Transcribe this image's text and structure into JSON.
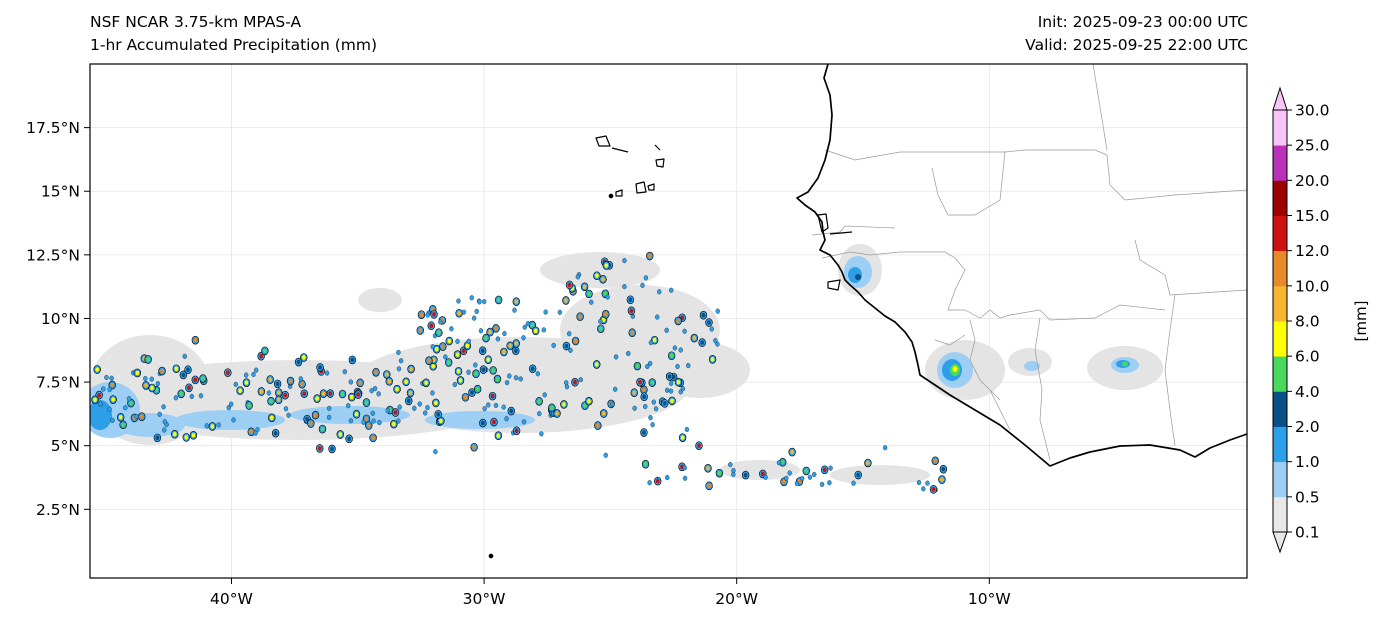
{
  "header": {
    "model": "NSF NCAR 3.75-km MPAS-A",
    "field": "1-hr Accumulated Precipitation (mm)",
    "init": "Init: 2025-09-23 00:00 UTC",
    "valid": "Valid: 2025-09-25 22:00 UTC"
  },
  "map": {
    "lon_range": [
      -45.6,
      0.2
    ],
    "lat_range": [
      -0.2,
      20.0
    ],
    "lat_ticks": [
      {
        "value": 2.5,
        "label": "2.5°N"
      },
      {
        "value": 5,
        "label": "5°N"
      },
      {
        "value": 7.5,
        "label": "7.5°N"
      },
      {
        "value": 10,
        "label": "10°N"
      },
      {
        "value": 12.5,
        "label": "12.5°N"
      },
      {
        "value": 15,
        "label": "15°N"
      },
      {
        "value": 17.5,
        "label": "17.5°N"
      }
    ],
    "lon_ticks": [
      {
        "value": -40,
        "label": "40°W"
      },
      {
        "value": -30,
        "label": "30°W"
      },
      {
        "value": -20,
        "label": "20°W"
      },
      {
        "value": -10,
        "label": "10°W"
      }
    ],
    "gridlines": true
  },
  "colorbar": {
    "label": "[mm]",
    "levels": [
      "0.1",
      "0.5",
      "1.0",
      "2.0",
      "4.0",
      "6.0",
      "8.0",
      "10.0",
      "12.0",
      "15.0",
      "20.0",
      "25.0",
      "30.0"
    ],
    "colors": [
      "#e8e8e8",
      "#9dcff5",
      "#2d9ee8",
      "#0a4f86",
      "#49d95c",
      "#ffff00",
      "#f5b52e",
      "#e8892a",
      "#cc1111",
      "#9c0000",
      "#b930b9",
      "#f7c5f7"
    ],
    "extend": "both"
  }
}
